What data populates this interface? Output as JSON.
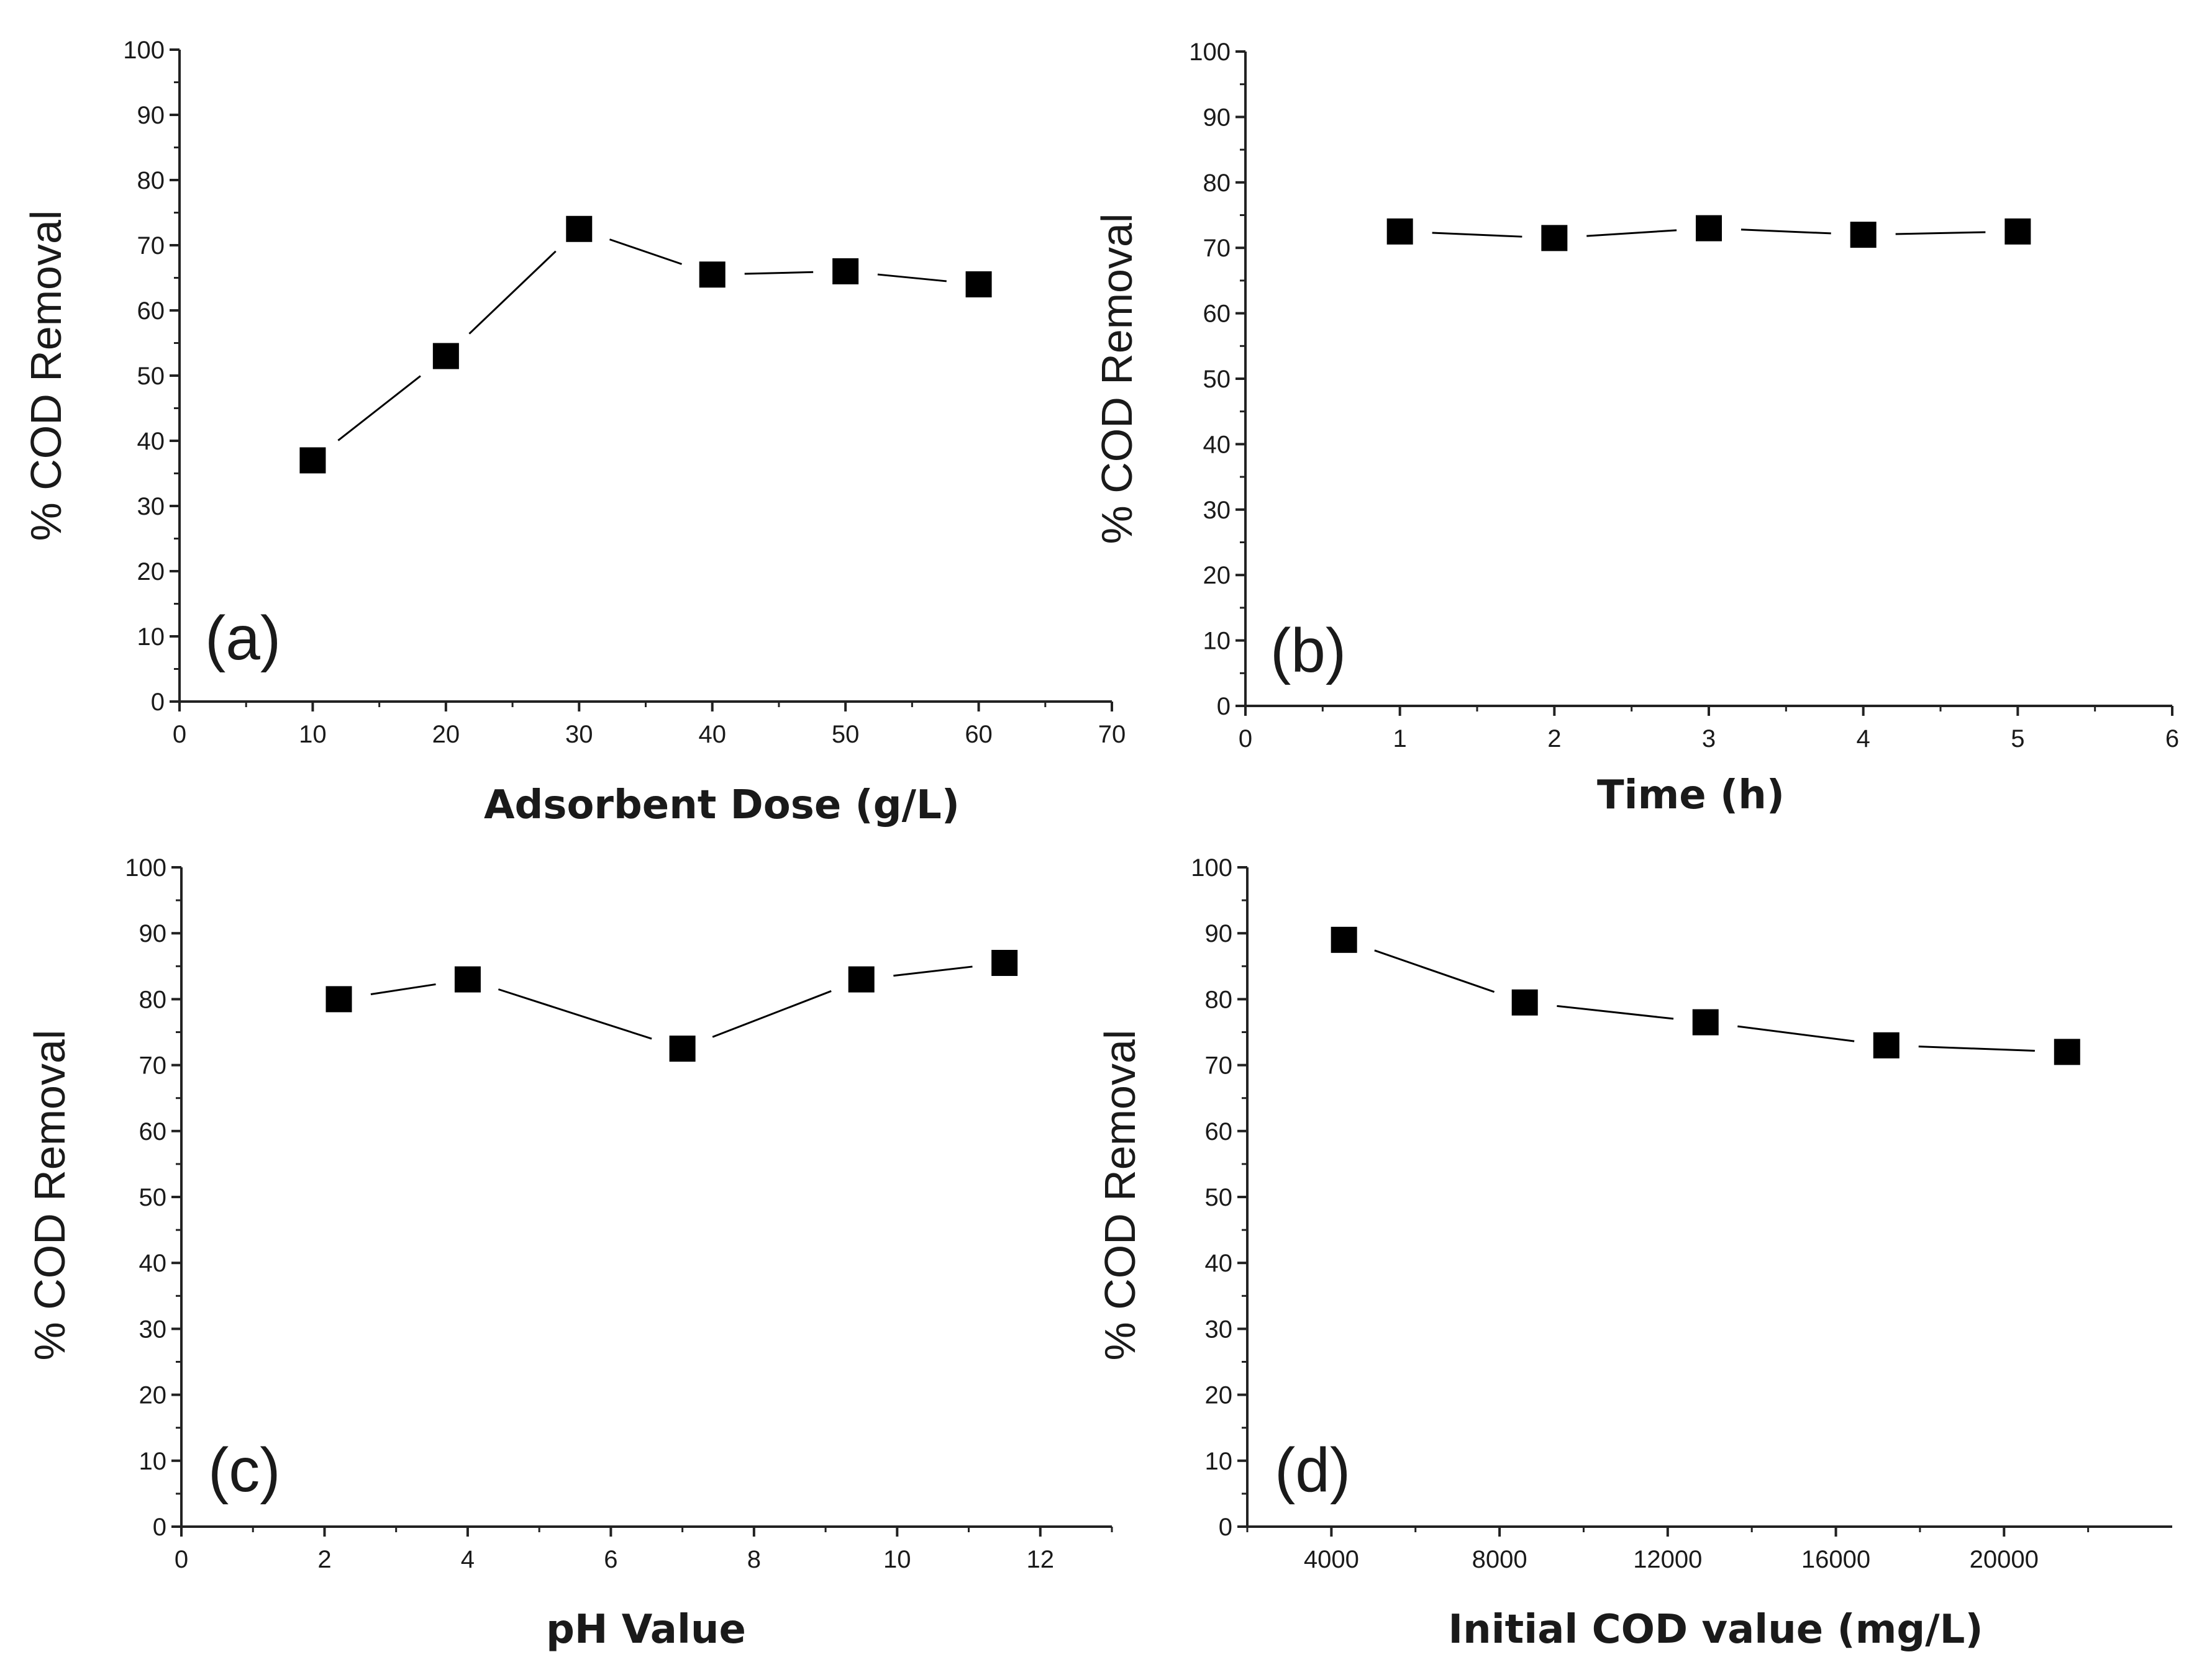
{
  "chart_data": [
    {
      "type": "line",
      "panel": "(a)",
      "title": "",
      "xlabel": "Adsorbent Dose (g/L)",
      "ylabel": "% COD Removal",
      "xlim": [
        0,
        70
      ],
      "ylim": [
        0,
        100
      ],
      "xticks": [
        0,
        10,
        20,
        30,
        40,
        50,
        60,
        70
      ],
      "yticks": [
        0,
        10,
        20,
        30,
        40,
        50,
        60,
        70,
        80,
        90,
        100
      ],
      "series": [
        {
          "name": "COD removal",
          "marker": "square",
          "color": "#000000",
          "x": [
            10,
            20,
            30,
            40,
            50,
            60
          ],
          "y": [
            37,
            53,
            72.5,
            65.5,
            66,
            64
          ]
        }
      ]
    },
    {
      "type": "line",
      "panel": "(b)",
      "title": "",
      "xlabel": "Time (h)",
      "ylabel": "% COD Removal",
      "xlim": [
        0,
        6
      ],
      "ylim": [
        0,
        100
      ],
      "xticks": [
        0,
        1,
        2,
        3,
        4,
        5,
        6
      ],
      "yticks": [
        0,
        10,
        20,
        30,
        40,
        50,
        60,
        70,
        80,
        90,
        100
      ],
      "series": [
        {
          "name": "COD removal",
          "marker": "square",
          "color": "#000000",
          "x": [
            1,
            2,
            3,
            4,
            5
          ],
          "y": [
            72.5,
            71.5,
            73,
            72,
            72.5
          ]
        }
      ]
    },
    {
      "type": "line",
      "panel": "(c)",
      "title": "",
      "xlabel": "pH Value",
      "ylabel": "% COD Removal",
      "xlim": [
        0,
        13
      ],
      "ylim": [
        0,
        100
      ],
      "xticks": [
        0,
        2,
        4,
        6,
        8,
        10,
        12
      ],
      "yticks": [
        0,
        10,
        20,
        30,
        40,
        50,
        60,
        70,
        80,
        90,
        100
      ],
      "series": [
        {
          "name": "COD removal",
          "marker": "square",
          "color": "#000000",
          "x": [
            2.2,
            4,
            7,
            9.5,
            11.5
          ],
          "y": [
            80,
            83,
            72.5,
            83,
            85.5
          ]
        }
      ]
    },
    {
      "type": "line",
      "panel": "(d)",
      "title": "",
      "xlabel": "Initial COD value (mg/L)",
      "ylabel": "% COD Removal",
      "xlim": [
        2000,
        24000
      ],
      "ylim": [
        0,
        100
      ],
      "xticks": [
        4000,
        8000,
        12000,
        16000,
        20000
      ],
      "yticks": [
        0,
        10,
        20,
        30,
        40,
        50,
        60,
        70,
        80,
        90,
        100
      ],
      "series": [
        {
          "name": "COD removal",
          "marker": "square",
          "color": "#000000",
          "x": [
            4300,
            8600,
            12900,
            17200,
            21500
          ],
          "y": [
            89,
            79.5,
            76.5,
            73,
            72
          ]
        }
      ]
    }
  ]
}
